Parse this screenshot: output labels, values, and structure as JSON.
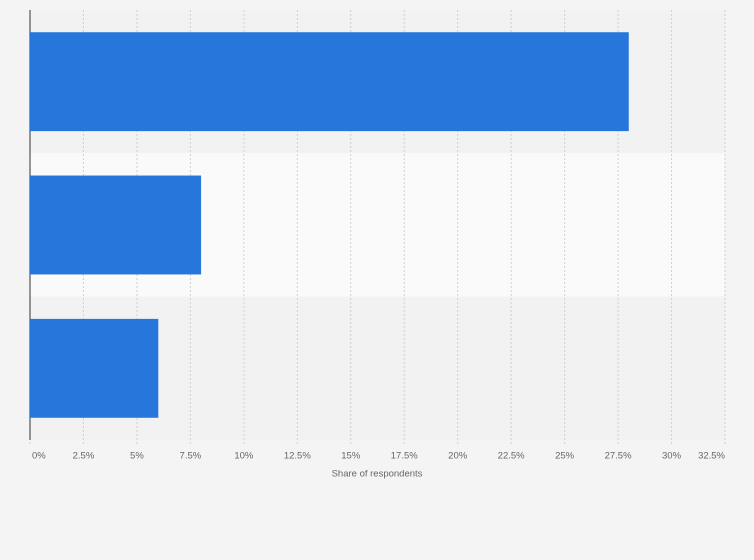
{
  "chart_data": {
    "type": "bar",
    "orientation": "horizontal",
    "x_label": "Share of respondents",
    "categories": [
      null,
      null,
      null
    ],
    "values": [
      28,
      8,
      6
    ],
    "color": "#2776db",
    "xlim": [
      0,
      32.5
    ],
    "xticks": [
      {
        "value": 0,
        "label": "0%"
      },
      {
        "value": 2.5,
        "label": "2.5%"
      },
      {
        "value": 5,
        "label": "5%"
      },
      {
        "value": 7.5,
        "label": "7.5%"
      },
      {
        "value": 10,
        "label": "10%"
      },
      {
        "value": 12.5,
        "label": "12.5%"
      },
      {
        "value": 15,
        "label": "15%"
      },
      {
        "value": 17.5,
        "label": "17.5%"
      },
      {
        "value": 20,
        "label": "20%"
      },
      {
        "value": 22.5,
        "label": "22.5%"
      },
      {
        "value": 25,
        "label": "25%"
      },
      {
        "value": 27.5,
        "label": "27.5%"
      },
      {
        "value": 30,
        "label": "30%"
      },
      {
        "value": 32.5,
        "label": "32.5%"
      }
    ],
    "grid": true
  }
}
